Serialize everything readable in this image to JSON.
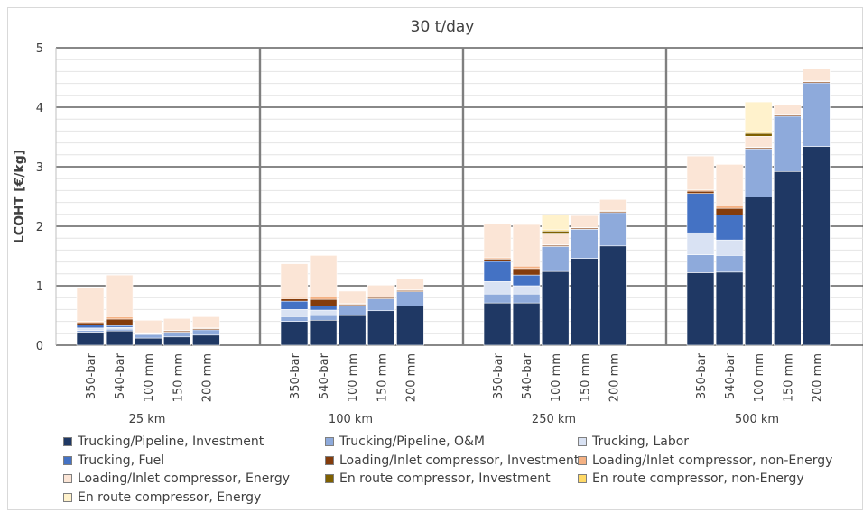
{
  "chart_data": {
    "type": "bar",
    "stacked": true,
    "title": "30 t/day",
    "ylabel": "LCOHT [€/kg]",
    "xlabel": "",
    "ylim": [
      0,
      5
    ],
    "yticks": [
      0,
      1,
      2,
      3,
      4,
      5
    ],
    "grid": "horizontal",
    "legend_position": "bottom",
    "groups": [
      "25 km",
      "100 km",
      "250 km",
      "500 km"
    ],
    "categories": [
      "350-bar",
      "540-bar",
      "100 mm",
      "150 mm",
      "200 mm"
    ],
    "series": [
      {
        "name": "Trucking/Pipeline, Investment",
        "color": "#1f3864",
        "values": [
          [
            0.22,
            0.24,
            0.12,
            0.14,
            0.17
          ],
          [
            0.4,
            0.42,
            0.5,
            0.58,
            0.66
          ],
          [
            0.71,
            0.71,
            1.24,
            1.46,
            1.67
          ],
          [
            1.22,
            1.23,
            2.49,
            2.92,
            3.34
          ]
        ]
      },
      {
        "name": "Trucking/Pipeline, O&M",
        "color": "#8eaadb",
        "values": [
          [
            0.03,
            0.03,
            0.06,
            0.08,
            0.09
          ],
          [
            0.08,
            0.08,
            0.17,
            0.2,
            0.24
          ],
          [
            0.15,
            0.15,
            0.42,
            0.49,
            0.56
          ],
          [
            0.3,
            0.28,
            0.81,
            0.93,
            1.07
          ]
        ]
      },
      {
        "name": "Trucking, Labor",
        "color": "#d9e2f3",
        "values": [
          [
            0.04,
            0.03,
            0,
            0,
            0
          ],
          [
            0.12,
            0.09,
            0,
            0,
            0
          ],
          [
            0.21,
            0.14,
            0,
            0,
            0
          ],
          [
            0.37,
            0.26,
            0,
            0,
            0
          ]
        ]
      },
      {
        "name": "Trucking, Fuel",
        "color": "#4472c4",
        "values": [
          [
            0.05,
            0.03,
            0,
            0,
            0
          ],
          [
            0.14,
            0.07,
            0,
            0,
            0
          ],
          [
            0.34,
            0.18,
            0,
            0,
            0
          ],
          [
            0.66,
            0.42,
            0,
            0,
            0
          ]
        ]
      },
      {
        "name": "Loading/Inlet compressor, Investment",
        "color": "#843c0c",
        "values": [
          [
            0.04,
            0.11,
            0.02,
            0.02,
            0.02
          ],
          [
            0.04,
            0.11,
            0.02,
            0.02,
            0.02
          ],
          [
            0.04,
            0.11,
            0.02,
            0.02,
            0.02
          ],
          [
            0.04,
            0.11,
            0.02,
            0.02,
            0.02
          ]
        ]
      },
      {
        "name": "Loading/Inlet compressor, non-Energy",
        "color": "#f4b183",
        "values": [
          [
            0.02,
            0.04,
            0.01,
            0.01,
            0.01
          ],
          [
            0.02,
            0.04,
            0.01,
            0.01,
            0.01
          ],
          [
            0.02,
            0.04,
            0.01,
            0.01,
            0.01
          ],
          [
            0.02,
            0.04,
            0.01,
            0.01,
            0.01
          ]
        ]
      },
      {
        "name": "Loading/Inlet compressor, Energy",
        "color": "#fbe5d6",
        "values": [
          [
            0.57,
            0.7,
            0.21,
            0.2,
            0.19
          ],
          [
            0.57,
            0.7,
            0.21,
            0.2,
            0.19
          ],
          [
            0.57,
            0.7,
            0.18,
            0.2,
            0.19
          ],
          [
            0.57,
            0.7,
            0.18,
            0.16,
            0.21
          ]
        ]
      },
      {
        "name": "En route compressor, Investment",
        "color": "#7f6000",
        "values": [
          [
            0,
            0,
            0,
            0,
            0
          ],
          [
            0,
            0,
            0,
            0,
            0
          ],
          [
            0,
            0,
            0.05,
            0,
            0
          ],
          [
            0,
            0,
            0.05,
            0,
            0
          ]
        ]
      },
      {
        "name": "En route compressor, non-Energy",
        "color": "#ffd966",
        "values": [
          [
            0,
            0,
            0,
            0,
            0
          ],
          [
            0,
            0,
            0,
            0,
            0
          ],
          [
            0,
            0,
            0.02,
            0,
            0
          ],
          [
            0,
            0,
            0.03,
            0,
            0
          ]
        ]
      },
      {
        "name": "En route compressor, Energy",
        "color": "#fff2cc",
        "values": [
          [
            0,
            0,
            0,
            0,
            0
          ],
          [
            0,
            0,
            0,
            0,
            0
          ],
          [
            0,
            0,
            0.25,
            0,
            0
          ],
          [
            0,
            0,
            0.5,
            0,
            0
          ]
        ]
      }
    ]
  }
}
